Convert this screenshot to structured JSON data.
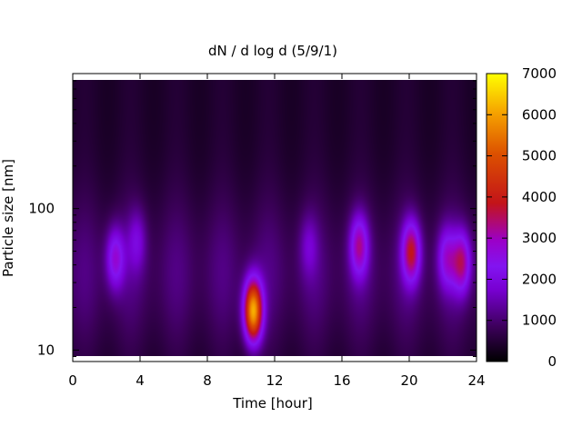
{
  "chart_data": {
    "type": "heatmap",
    "title": "dN / d log d (5/9/1)",
    "xlabel": "Time [hour]",
    "ylabel": "Particle size [nm]",
    "xlim": [
      0,
      24
    ],
    "ylim": [
      8.3,
      900
    ],
    "yscale": "log",
    "x_ticks": [
      0,
      4,
      8,
      12,
      16,
      20,
      24
    ],
    "y_ticks": [
      10,
      100
    ],
    "colorbar": {
      "min": 0,
      "max": 7000,
      "ticks": [
        0,
        1000,
        2000,
        3000,
        4000,
        5000,
        6000,
        7000
      ],
      "palette": "gnuplot black-purple-blue-red-orange-yellow"
    },
    "background_level": 900,
    "features": [
      {
        "time": 10.7,
        "size": 19,
        "value": 6300
      },
      {
        "time": 2.5,
        "size": 45,
        "value": 2800
      },
      {
        "time": 17.0,
        "size": 55,
        "value": 3100
      },
      {
        "time": 20.1,
        "size": 50,
        "value": 3700
      },
      {
        "time": 23.1,
        "size": 42,
        "value": 3300
      },
      {
        "time": 22.2,
        "size": 45,
        "value": 2600
      },
      {
        "time": 3.8,
        "size": 60,
        "value": 1900
      },
      {
        "time": 14.0,
        "size": 55,
        "value": 1700
      }
    ]
  }
}
